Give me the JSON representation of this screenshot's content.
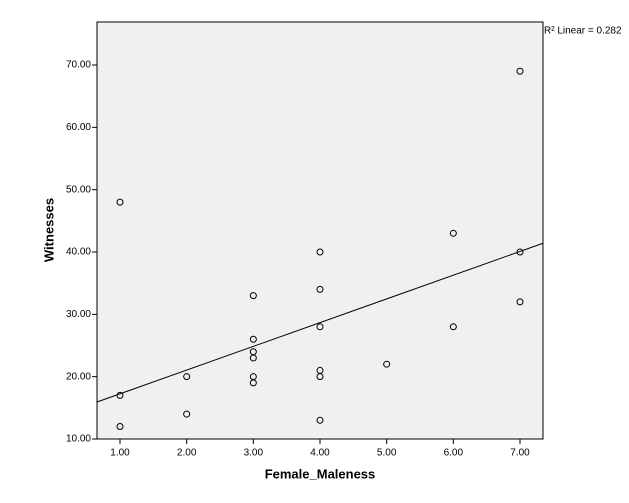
{
  "chart_data": {
    "type": "scatter",
    "x_label": "Female_Maleness",
    "y_label": "Witnesses",
    "annotation": "R² Linear = 0.282",
    "x": [
      1,
      1,
      1,
      2,
      2,
      3,
      3,
      3,
      3,
      3,
      3,
      4,
      4,
      4,
      4,
      4,
      4,
      5,
      6,
      6,
      7,
      7,
      7
    ],
    "values": [
      48,
      17,
      12,
      20,
      14,
      33,
      26,
      24,
      23,
      20,
      19,
      40,
      34,
      28,
      21,
      20,
      13,
      22,
      43,
      28,
      69,
      40,
      32
    ],
    "color": "#000000",
    "fit_line": {
      "x": [
        0.655,
        7.345
      ],
      "y": [
        15.94,
        41.4
      ]
    },
    "xlim": [
      0.655,
      7.345
    ],
    "ylim": [
      10,
      76.9
    ],
    "xticks": [
      {
        "value": 1,
        "label": "1.00"
      },
      {
        "value": 2,
        "label": "2.00"
      },
      {
        "value": 3,
        "label": "3.00"
      },
      {
        "value": 4,
        "label": "4.00"
      },
      {
        "value": 5,
        "label": "5.00"
      },
      {
        "value": 6,
        "label": "6.00"
      },
      {
        "value": 7,
        "label": "7.00"
      }
    ],
    "yticks": [
      {
        "value": 10,
        "label": "10.00"
      },
      {
        "value": 20,
        "label": "20.00"
      },
      {
        "value": 30,
        "label": "30.00"
      },
      {
        "value": 40,
        "label": "40.00"
      },
      {
        "value": 50,
        "label": "50.00"
      },
      {
        "value": 60,
        "label": "60.00"
      },
      {
        "value": 70,
        "label": "70.00"
      }
    ]
  }
}
